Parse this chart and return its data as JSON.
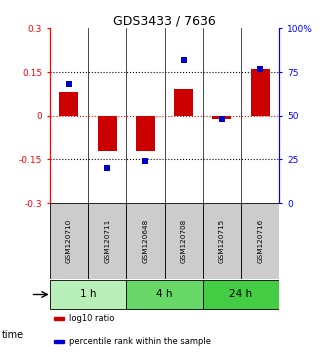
{
  "title": "GDS3433 / 7636",
  "samples": [
    "GSM120710",
    "GSM120711",
    "GSM120648",
    "GSM120708",
    "GSM120715",
    "GSM120716"
  ],
  "log10_ratio": [
    0.08,
    -0.12,
    -0.12,
    0.09,
    -0.01,
    0.16
  ],
  "percentile": [
    68,
    20,
    24,
    82,
    48,
    77
  ],
  "ylim_left": [
    -0.3,
    0.3
  ],
  "ylim_right": [
    0,
    100
  ],
  "yticks_left": [
    -0.3,
    -0.15,
    0,
    0.15,
    0.3
  ],
  "ytick_labels_left": [
    "-0.3",
    "-0.15",
    "0",
    "0.15",
    "0.3"
  ],
  "yticks_right": [
    0,
    25,
    50,
    75,
    100
  ],
  "ytick_labels_right": [
    "0",
    "25",
    "50",
    "75",
    "100%"
  ],
  "dotted_lines": [
    -0.15,
    0.0,
    0.15
  ],
  "groups": [
    {
      "label": "1 h",
      "start": 1,
      "end": 2,
      "color": "#b8f0b8"
    },
    {
      "label": "4 h",
      "start": 3,
      "end": 4,
      "color": "#68d868"
    },
    {
      "label": "24 h",
      "start": 5,
      "end": 6,
      "color": "#44cc44"
    }
  ],
  "bar_color": "#cc0000",
  "dot_color": "#0000cc",
  "sample_box_color": "#cccccc",
  "legend_items": [
    {
      "color": "#cc0000",
      "label": "log10 ratio"
    },
    {
      "color": "#0000cc",
      "label": "percentile rank within the sample"
    }
  ],
  "bar_width": 0.5,
  "dot_size": 22,
  "n_samples": 6
}
